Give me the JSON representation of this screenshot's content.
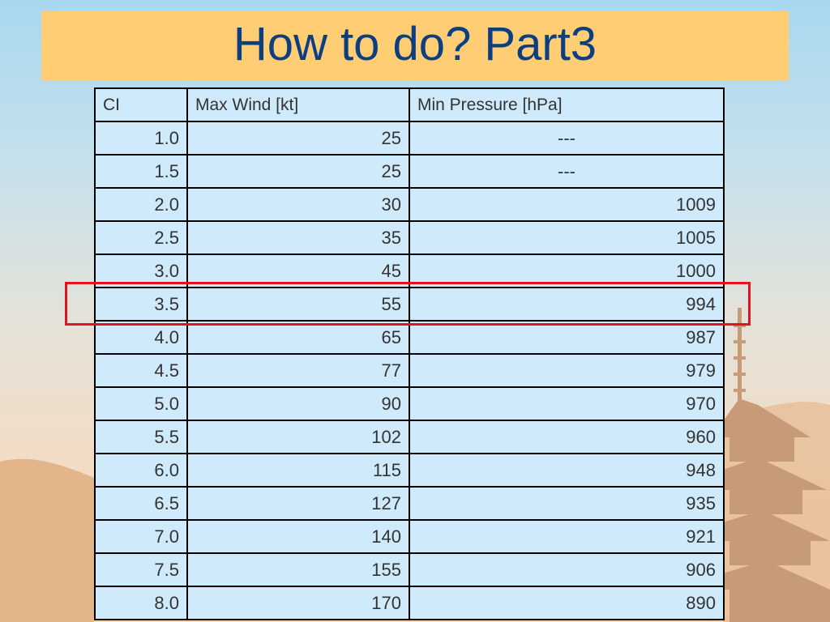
{
  "slide": {
    "title": "How to do? Part3"
  },
  "table": {
    "headers": [
      "CI",
      "Max Wind [kt]",
      "Min Pressure [hPa]"
    ],
    "rows": [
      [
        "1.0",
        "25",
        "---"
      ],
      [
        "1.5",
        "25",
        "---"
      ],
      [
        "2.0",
        "30",
        "1009"
      ],
      [
        "2.5",
        "35",
        "1005"
      ],
      [
        "3.0",
        "45",
        "1000"
      ],
      [
        "3.5",
        "55",
        "994"
      ],
      [
        "4.0",
        "65",
        "987"
      ],
      [
        "4.5",
        "77",
        "979"
      ],
      [
        "5.0",
        "90",
        "970"
      ],
      [
        "5.5",
        "102",
        "960"
      ],
      [
        "6.0",
        "115",
        "948"
      ],
      [
        "6.5",
        "127",
        "935"
      ],
      [
        "7.0",
        "140",
        "921"
      ],
      [
        "7.5",
        "155",
        "906"
      ],
      [
        "8.0",
        "170",
        "890"
      ]
    ],
    "highlighted_row_ci": "3.5"
  },
  "colors": {
    "title_band": "#fecd74",
    "title_text": "#0b3f82",
    "table_cell": "#cfeafb",
    "highlight": "#e0141e"
  }
}
